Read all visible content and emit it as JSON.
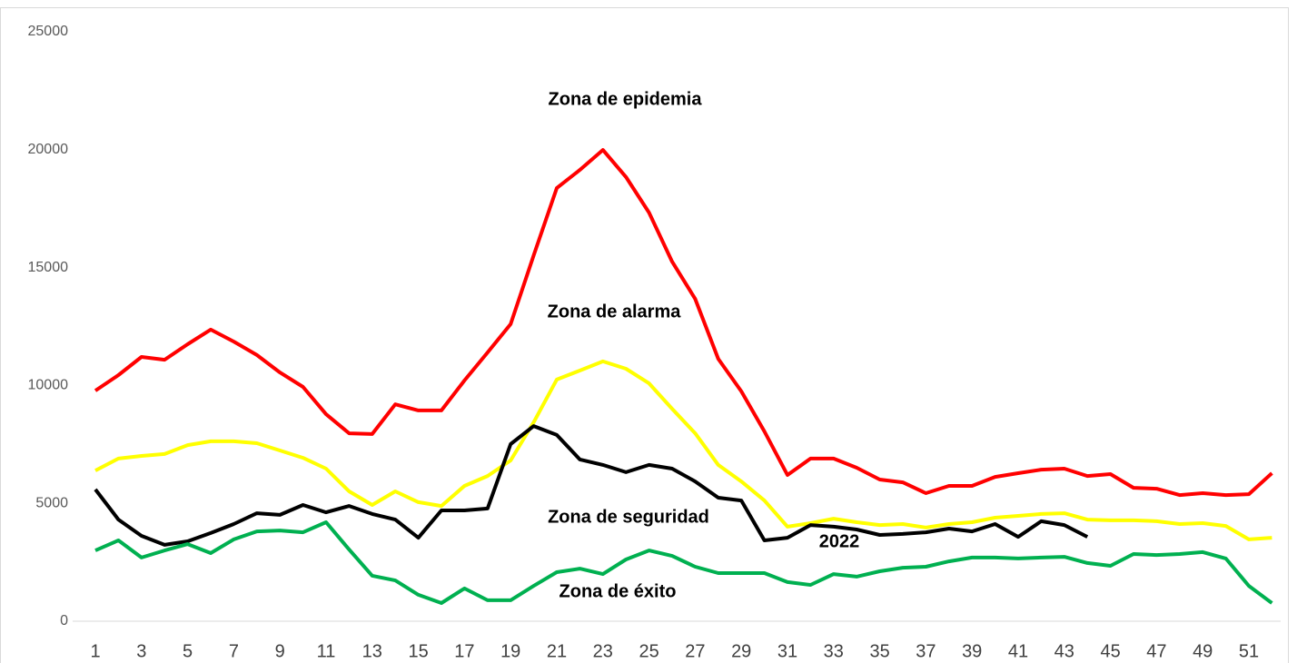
{
  "chart_data": {
    "type": "line",
    "categories": [
      "1",
      null,
      "3",
      null,
      "5",
      null,
      "7",
      null,
      "9",
      null,
      "11",
      null,
      "13",
      null,
      "15",
      null,
      "17",
      null,
      "19",
      null,
      "21",
      null,
      "23",
      null,
      "25",
      null,
      "27",
      null,
      "29",
      null,
      "31",
      null,
      "33",
      null,
      "35",
      null,
      "37",
      null,
      "39",
      null,
      "41",
      null,
      "43",
      null,
      "45",
      null,
      "47",
      null,
      "49",
      null,
      "51",
      null
    ],
    "series": [
      {
        "color": "#ff0000",
        "values": [
          9780,
          10440,
          11210,
          11090,
          11750,
          12370,
          11860,
          11290,
          10550,
          9940,
          8780,
          7970,
          7940,
          9200,
          8940,
          8940,
          10210,
          11400,
          12600,
          15520,
          18370,
          19140,
          19990,
          18840,
          17330,
          15250,
          13670,
          11130,
          9750,
          8050,
          6200,
          6900,
          6900,
          6510,
          6010,
          5890,
          5430,
          5740,
          5740,
          6120,
          6280,
          6430,
          6470,
          6160,
          6240,
          5660,
          5620,
          5350,
          5430,
          5350,
          5390,
          6280
        ]
      },
      {
        "color": "#ffff00",
        "values": [
          6390,
          6900,
          7010,
          7090,
          7470,
          7630,
          7630,
          7550,
          7240,
          6930,
          6470,
          5510,
          4930,
          5510,
          5050,
          4890,
          5740,
          6160,
          6820,
          8440,
          10250,
          10630,
          11020,
          10710,
          10090,
          9010,
          7970,
          6630,
          5930,
          5120,
          4010,
          4160,
          4350,
          4200,
          4080,
          4120,
          3970,
          4120,
          4200,
          4390,
          4470,
          4550,
          4580,
          4310,
          4280,
          4280,
          4240,
          4120,
          4160,
          4040,
          3470,
          3540
        ]
      },
      {
        "color": "#000000",
        "values": [
          5590,
          4310,
          3620,
          3240,
          3390,
          3740,
          4120,
          4580,
          4510,
          4930,
          4620,
          4890,
          4550,
          4310,
          3540,
          4700,
          4700,
          4780,
          7510,
          8280,
          7900,
          6860,
          6630,
          6320,
          6630,
          6470,
          5930,
          5240,
          5120,
          3430,
          3540,
          4080,
          4010,
          3890,
          3660,
          3700,
          3770,
          3930,
          3810,
          4120,
          3580,
          4240,
          4080,
          3580,
          null,
          null,
          null,
          null,
          null,
          null,
          null,
          null
        ]
      },
      {
        "color": "#00b050",
        "values": [
          3000,
          3430,
          2700,
          3000,
          3270,
          2890,
          3470,
          3810,
          3850,
          3770,
          4200,
          3040,
          1930,
          1730,
          1120,
          770,
          1390,
          890,
          890,
          1500,
          2080,
          2230,
          2000,
          2620,
          3000,
          2770,
          2310,
          2040,
          2040,
          2040,
          1660,
          1540,
          2000,
          1890,
          2120,
          2270,
          2310,
          2540,
          2700,
          2700,
          2660,
          2700,
          2730,
          2470,
          2350,
          2850,
          2810,
          2850,
          2930,
          2660,
          1500,
          770
        ]
      }
    ],
    "annotations": [
      "Zona de epidemia",
      "Zona de alarma",
      "Zona de seguridad",
      "2022",
      "Zona de éxito"
    ],
    "ylim": [
      0,
      25000
    ],
    "yticks": [
      0,
      5000,
      10000,
      15000,
      20000,
      25000
    ]
  }
}
